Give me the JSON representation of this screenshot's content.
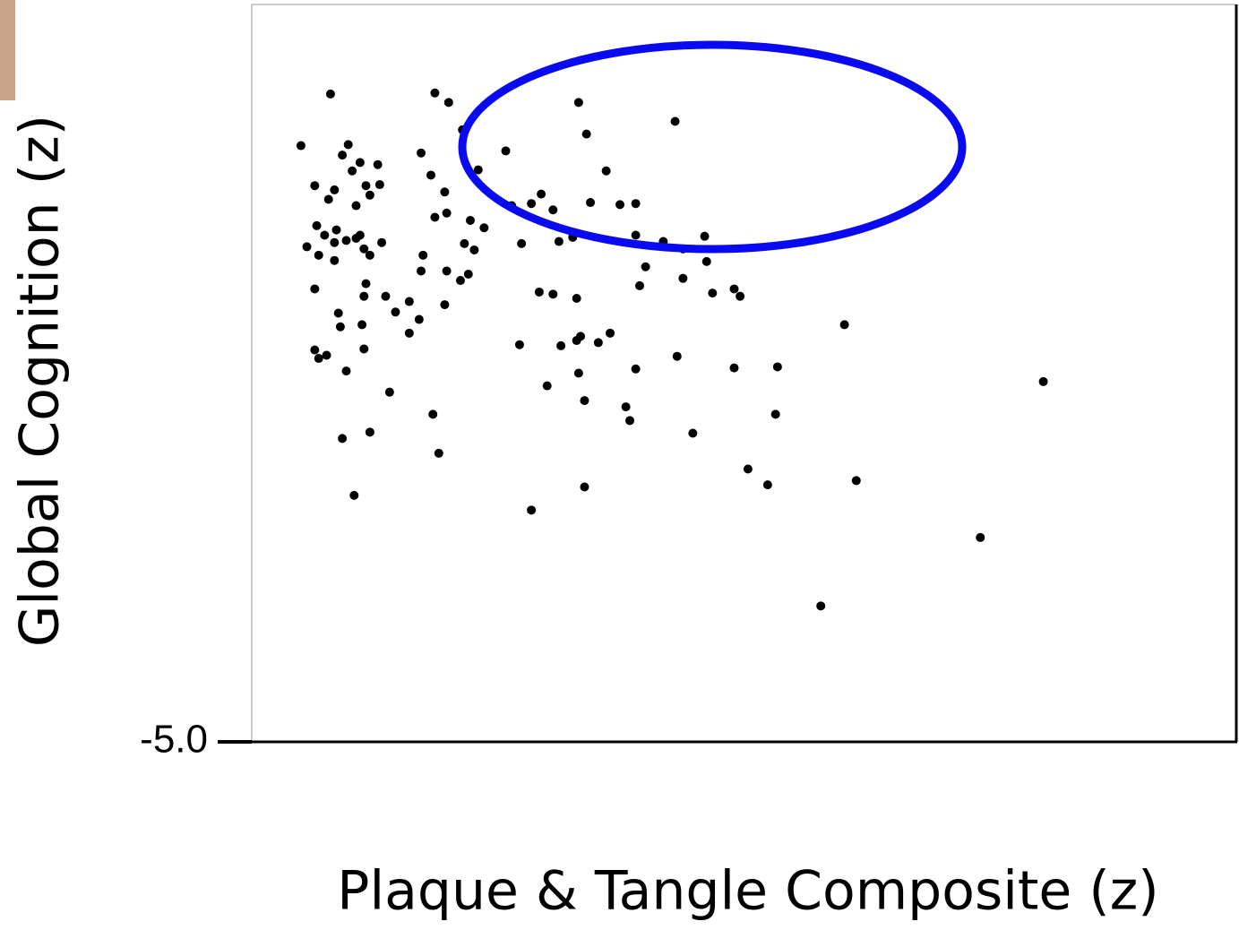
{
  "chart_data": {
    "type": "scatter",
    "xlabel": "Plaque & Tangle Composite (z)",
    "ylabel": "Global Cognition (z)",
    "xlim": [
      -1,
      4
    ],
    "ylim": [
      -5,
      2
    ],
    "yticks": [
      {
        "value": -5,
        "label": "-5.0"
      }
    ],
    "color": "#000000",
    "x": [
      -0.6,
      -0.07,
      0.0,
      -0.75,
      -0.51,
      -0.54,
      -0.45,
      -0.36,
      -0.49,
      -0.14,
      -0.09,
      -0.68,
      -0.58,
      -0.61,
      -0.42,
      -0.4,
      -0.35,
      -0.47,
      -0.02,
      -0.67,
      -0.63,
      -0.57,
      -0.72,
      -0.66,
      -0.58,
      -0.52,
      -0.47,
      -0.45,
      -0.43,
      -0.4,
      -0.34,
      -0.58,
      -0.68,
      -0.42,
      -0.43,
      -0.44,
      -0.32,
      -0.56,
      -0.55,
      -0.27,
      -0.2,
      -0.15,
      -0.2,
      -0.68,
      -0.66,
      -0.62,
      -0.52,
      -0.43,
      -0.3,
      -0.54,
      -0.4,
      -0.48,
      -0.08,
      -0.05,
      -0.07,
      -0.01,
      0.11,
      0.18,
      0.08,
      0.13,
      -0.13,
      -0.14,
      -0.01,
      0.06,
      0.1,
      -0.02,
      0.15,
      0.29,
      0.32,
      0.37,
      0.42,
      0.47,
      0.53,
      0.56,
      0.63,
      0.66,
      0.7,
      0.8,
      0.72,
      0.87,
      0.95,
      0.95,
      1.0,
      0.97,
      1.09,
      1.15,
      1.19,
      1.3,
      1.31,
      1.19,
      1.34,
      1.45,
      1.48,
      0.46,
      0.53,
      0.65,
      0.36,
      0.57,
      0.65,
      0.67,
      0.76,
      0.82,
      0.5,
      0.66,
      0.69,
      0.9,
      0.92,
      0.95,
      1.16,
      1.24,
      1.45,
      1.67,
      1.66,
      1.52,
      1.62,
      2.01,
      2.07,
      3.02,
      2.7,
      1.89,
      0.69,
      0.42,
      0.07
    ],
    "y": [
      1.15,
      1.16,
      1.07,
      0.66,
      0.67,
      0.57,
      0.5,
      0.48,
      0.42,
      0.59,
      0.38,
      0.28,
      0.24,
      0.15,
      0.28,
      0.19,
      0.29,
      0.09,
      0.22,
      -0.1,
      -0.19,
      -0.14,
      -0.3,
      -0.38,
      -0.26,
      -0.24,
      -0.22,
      -0.19,
      -0.32,
      -0.38,
      -0.26,
      -0.43,
      -0.7,
      -0.65,
      -0.77,
      -1.04,
      -0.77,
      -0.93,
      -1.06,
      -0.92,
      -0.82,
      -0.99,
      -1.12,
      -1.28,
      -1.36,
      -1.33,
      -1.48,
      -1.27,
      -1.68,
      -2.12,
      -2.06,
      -2.66,
      -1.89,
      -2.26,
      -0.02,
      0.02,
      -0.05,
      -0.12,
      -0.27,
      -0.33,
      -0.38,
      -0.53,
      -0.53,
      -0.62,
      -0.56,
      -0.85,
      0.43,
      0.61,
      0.09,
      -0.27,
      0.11,
      0.2,
      0.05,
      -0.25,
      -0.21,
      1.07,
      0.77,
      0.42,
      0.12,
      0.1,
      0.11,
      -0.19,
      -0.49,
      -0.67,
      -0.25,
      0.89,
      -0.32,
      -0.2,
      -0.44,
      -0.6,
      -0.74,
      -0.7,
      -0.77,
      -0.73,
      -0.75,
      -0.79,
      -1.23,
      -1.24,
      -1.19,
      -1.15,
      -1.21,
      -1.12,
      -1.62,
      -1.5,
      -1.76,
      -1.82,
      -1.95,
      -1.46,
      -1.34,
      -2.07,
      -1.45,
      -1.44,
      -1.89,
      -2.41,
      -2.56,
      -1.04,
      -2.52,
      -1.58,
      -3.06,
      -3.71,
      -2.58,
      -2.8,
      0.81
    ]
  }
}
